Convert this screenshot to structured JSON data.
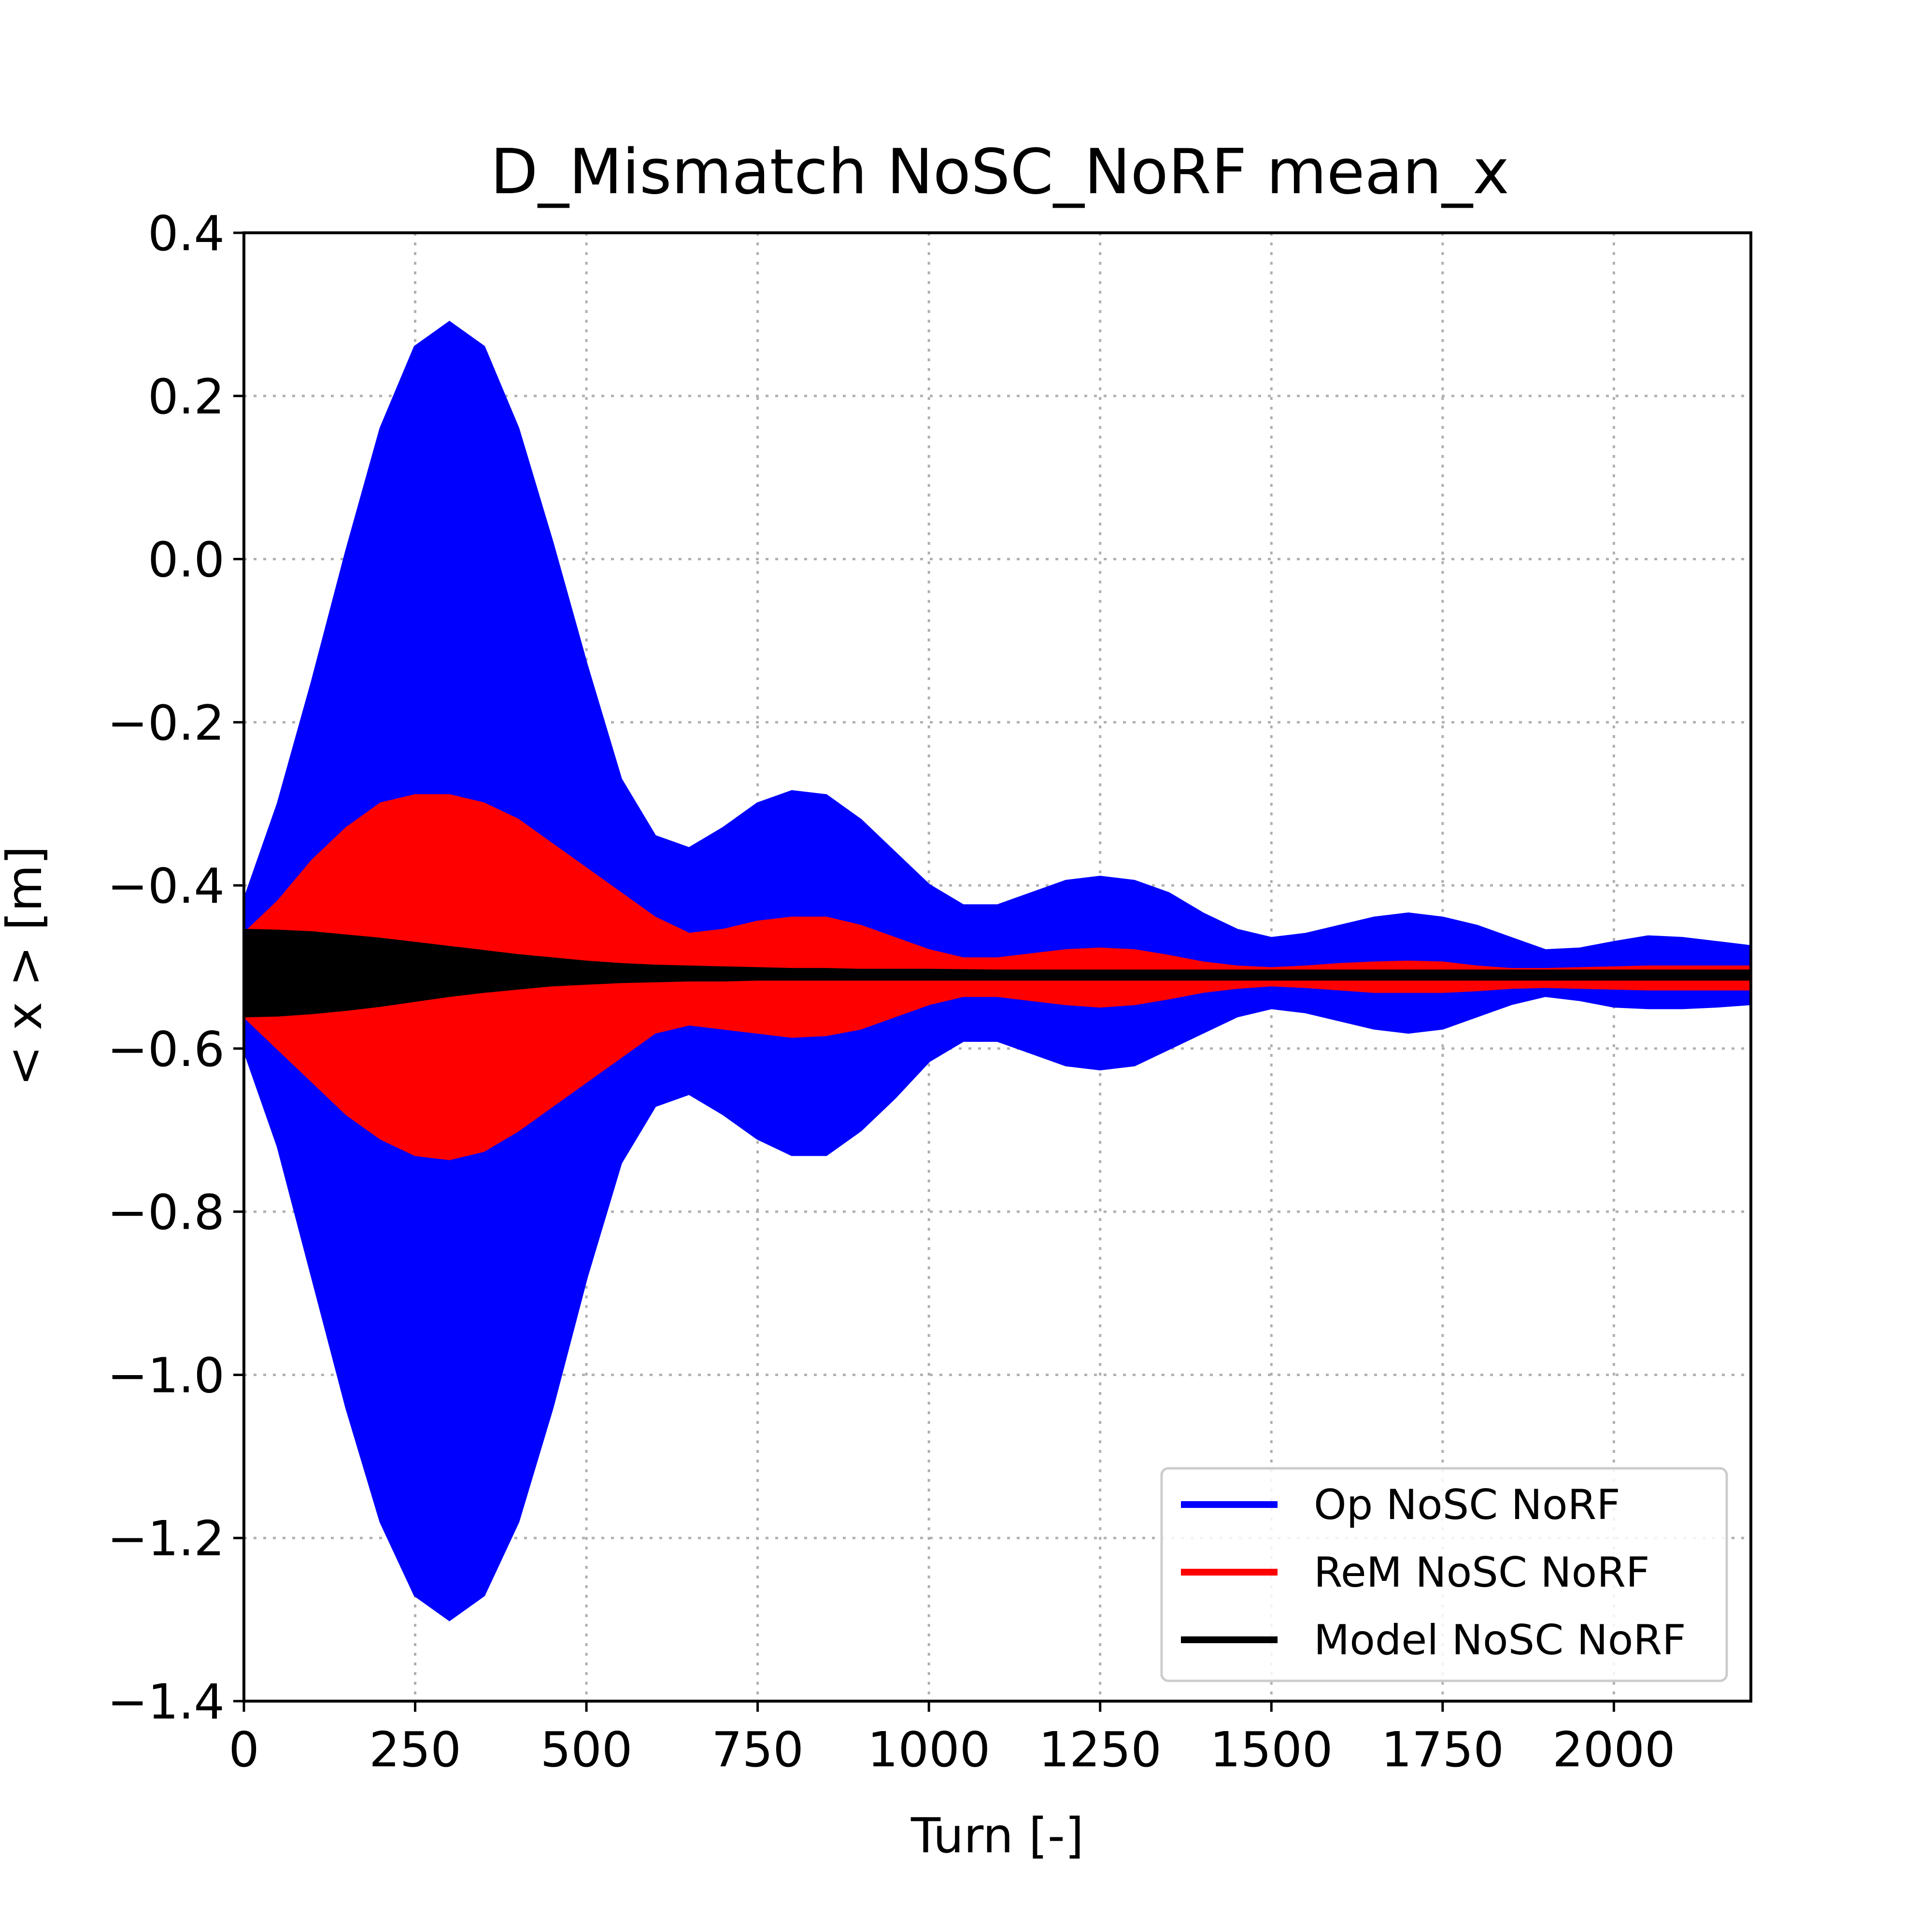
{
  "chart_data": {
    "type": "line",
    "title": "D_Mismatch NoSC_NoRF mean_x",
    "xlabel": "Turn [-]",
    "ylabel": "< x >  [m]",
    "xlim": [
      0,
      2200
    ],
    "ylim": [
      -1.4,
      0.4
    ],
    "xticks": [
      0,
      250,
      500,
      750,
      1000,
      1250,
      1500,
      1750,
      2000
    ],
    "xtick_labels": [
      "0",
      "250",
      "500",
      "750",
      "1000",
      "1250",
      "1500",
      "1750",
      "2000"
    ],
    "yticks": [
      0.4,
      0.2,
      0.0,
      -0.2,
      -0.4,
      -0.6,
      -0.8,
      -1.0,
      -1.2,
      -1.4
    ],
    "ytick_labels": [
      "0.4",
      "0.2",
      "0.0",
      "−0.2",
      "−0.4",
      "−0.6",
      "−0.8",
      "−1.0",
      "−1.2",
      "−1.4"
    ],
    "grid": true,
    "legend_position": "lower-right",
    "series": [
      {
        "name": "Op NoSC NoRF",
        "color": "#0000ff",
        "x": [
          0,
          50,
          100,
          150,
          200,
          250,
          300,
          350,
          400,
          450,
          500,
          550,
          600,
          650,
          700,
          750,
          800,
          850,
          900,
          950,
          1000,
          1050,
          1100,
          1150,
          1200,
          1250,
          1300,
          1350,
          1400,
          1450,
          1500,
          1550,
          1600,
          1650,
          1700,
          1750,
          1800,
          1850,
          1900,
          1950,
          2000,
          2050,
          2100,
          2150,
          2200
        ],
        "upper": [
          -0.42,
          -0.3,
          -0.15,
          0.01,
          0.16,
          0.26,
          0.29,
          0.26,
          0.16,
          0.02,
          -0.13,
          -0.27,
          -0.34,
          -0.355,
          -0.33,
          -0.3,
          -0.285,
          -0.29,
          -0.32,
          -0.36,
          -0.4,
          -0.425,
          -0.425,
          -0.41,
          -0.395,
          -0.39,
          -0.395,
          -0.41,
          -0.435,
          -0.455,
          -0.465,
          -0.46,
          -0.45,
          -0.44,
          -0.435,
          -0.44,
          -0.45,
          -0.465,
          -0.48,
          -0.478,
          -0.47,
          -0.463,
          -0.465,
          -0.47,
          -0.475
        ],
        "lower": [
          -0.6,
          -0.72,
          -0.88,
          -1.04,
          -1.18,
          -1.27,
          -1.3,
          -1.27,
          -1.18,
          -1.04,
          -0.88,
          -0.74,
          -0.67,
          -0.655,
          -0.68,
          -0.71,
          -0.73,
          -0.73,
          -0.7,
          -0.66,
          -0.615,
          -0.59,
          -0.59,
          -0.605,
          -0.62,
          -0.625,
          -0.62,
          -0.6,
          -0.58,
          -0.56,
          -0.55,
          -0.555,
          -0.565,
          -0.575,
          -0.58,
          -0.575,
          -0.56,
          -0.545,
          -0.535,
          -0.54,
          -0.548,
          -0.55,
          -0.55,
          -0.548,
          -0.545
        ]
      },
      {
        "name": "ReM NoSC NoRF",
        "color": "#ff0000",
        "x": [
          0,
          50,
          100,
          150,
          200,
          250,
          300,
          350,
          400,
          450,
          500,
          550,
          600,
          650,
          700,
          750,
          800,
          850,
          900,
          950,
          1000,
          1050,
          1100,
          1150,
          1200,
          1250,
          1300,
          1350,
          1400,
          1450,
          1500,
          1550,
          1600,
          1650,
          1700,
          1750,
          1800,
          1850,
          1900,
          1950,
          2000,
          2050,
          2100,
          2150,
          2200
        ],
        "upper": [
          -0.46,
          -0.42,
          -0.37,
          -0.33,
          -0.3,
          -0.29,
          -0.29,
          -0.3,
          -0.32,
          -0.35,
          -0.38,
          -0.41,
          -0.44,
          -0.46,
          -0.455,
          -0.445,
          -0.44,
          -0.44,
          -0.45,
          -0.465,
          -0.48,
          -0.49,
          -0.49,
          -0.485,
          -0.48,
          -0.478,
          -0.48,
          -0.487,
          -0.495,
          -0.5,
          -0.502,
          -0.5,
          -0.497,
          -0.495,
          -0.494,
          -0.495,
          -0.5,
          -0.503,
          -0.503,
          -0.502,
          -0.501,
          -0.5,
          -0.5,
          -0.5,
          -0.5
        ],
        "lower": [
          -0.56,
          -0.6,
          -0.64,
          -0.68,
          -0.71,
          -0.73,
          -0.735,
          -0.725,
          -0.7,
          -0.67,
          -0.64,
          -0.61,
          -0.58,
          -0.57,
          -0.575,
          -0.58,
          -0.585,
          -0.583,
          -0.575,
          -0.56,
          -0.545,
          -0.535,
          -0.535,
          -0.54,
          -0.545,
          -0.548,
          -0.545,
          -0.538,
          -0.53,
          -0.525,
          -0.522,
          -0.524,
          -0.527,
          -0.53,
          -0.53,
          -0.53,
          -0.528,
          -0.525,
          -0.524,
          -0.525,
          -0.526,
          -0.527,
          -0.527,
          -0.527,
          -0.527
        ]
      },
      {
        "name": "Model NoSC NoRF",
        "color": "#000000",
        "x": [
          0,
          50,
          100,
          150,
          200,
          250,
          300,
          350,
          400,
          450,
          500,
          550,
          600,
          650,
          700,
          750,
          800,
          850,
          900,
          950,
          1000,
          1100,
          1200,
          1300,
          1400,
          1500,
          1600,
          1700,
          1800,
          1900,
          2000,
          2100,
          2200
        ],
        "upper": [
          -0.455,
          -0.456,
          -0.458,
          -0.462,
          -0.466,
          -0.471,
          -0.476,
          -0.481,
          -0.486,
          -0.49,
          -0.494,
          -0.497,
          -0.499,
          -0.5,
          -0.501,
          -0.502,
          -0.503,
          -0.503,
          -0.504,
          -0.504,
          -0.504,
          -0.505,
          -0.505,
          -0.505,
          -0.505,
          -0.505,
          -0.505,
          -0.505,
          -0.505,
          -0.505,
          -0.505,
          -0.505,
          -0.505
        ],
        "lower": [
          -0.56,
          -0.559,
          -0.556,
          -0.552,
          -0.547,
          -0.541,
          -0.535,
          -0.53,
          -0.526,
          -0.522,
          -0.52,
          -0.518,
          -0.517,
          -0.516,
          -0.516,
          -0.515,
          -0.515,
          -0.515,
          -0.515,
          -0.515,
          -0.515,
          -0.515,
          -0.515,
          -0.515,
          -0.515,
          -0.515,
          -0.515,
          -0.515,
          -0.515,
          -0.515,
          -0.515,
          -0.515,
          -0.515
        ]
      }
    ]
  }
}
